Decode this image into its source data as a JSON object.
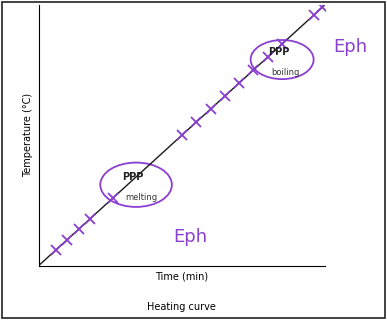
{
  "chart_data": {
    "type": "line",
    "caption": "Heating curve",
    "x_label": "Time (min)",
    "y_label": "Temperature (°C)",
    "x": [
      0,
      10
    ],
    "values": [
      0,
      10
    ],
    "color": "#1a1a1a",
    "marks": {
      "x": [
        0.6,
        1.0,
        1.4,
        1.8,
        2.6,
        5.0,
        5.5,
        6.0,
        6.5,
        7.0,
        7.5,
        8.0,
        8.5,
        9.6,
        9.9
      ],
      "values": [
        0.6,
        1.0,
        1.4,
        1.8,
        2.6,
        5.0,
        5.5,
        6.0,
        6.5,
        7.0,
        7.5,
        8.0,
        8.5,
        9.6,
        9.9
      ],
      "color": "#8a3fd1",
      "marker": "x"
    },
    "xlim": [
      0,
      10
    ],
    "ylim": [
      0,
      10
    ],
    "xticks": [],
    "yticks": [],
    "tick_labels": false,
    "annotations": [
      {
        "text": "melting",
        "note": "PPP",
        "handwritten": "Eph"
      },
      {
        "text": "boiling",
        "note": "PPP",
        "handwritten": "Eph"
      }
    ]
  }
}
